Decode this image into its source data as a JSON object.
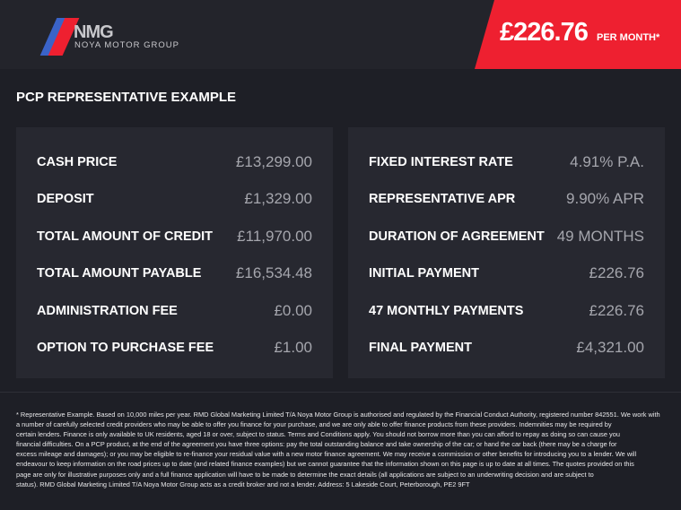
{
  "header": {
    "logo_text": "NMG",
    "logo_subtitle": "NOYA MOTOR GROUP",
    "price": "£226.76",
    "price_suffix": "PER MONTH*",
    "accent_color": "#ee2030"
  },
  "title": "PCP REPRESENTATIVE EXAMPLE",
  "left_panel": [
    {
      "label": "CASH PRICE",
      "value": "£13,299.00"
    },
    {
      "label": "DEPOSIT",
      "value": "£1,329.00"
    },
    {
      "label": "TOTAL AMOUNT OF CREDIT",
      "value": "£11,970.00"
    },
    {
      "label": "TOTAL AMOUNT PAYABLE",
      "value": "£16,534.48"
    },
    {
      "label": "ADMINISTRATION FEE",
      "value": "£0.00"
    },
    {
      "label": "OPTION TO PURCHASE FEE",
      "value": "£1.00"
    }
  ],
  "right_panel": [
    {
      "label": "FIXED INTEREST RATE",
      "value": "4.91% P.A."
    },
    {
      "label": "REPRESENTATIVE APR",
      "value": "9.90% APR"
    },
    {
      "label": "DURATION OF AGREEMENT",
      "value": "49 MONTHS"
    },
    {
      "label": "INITIAL PAYMENT",
      "value": "£226.76"
    },
    {
      "label": "47 MONTHLY PAYMENTS",
      "value": "£226.76"
    },
    {
      "label": "FINAL PAYMENT",
      "value": "£4,321.00"
    }
  ],
  "footnote": [
    "* Representative Example. Based on 10,000 miles per year. RMD Global Marketing Limited T/A Noya Motor Group is authorised and regulated by the Financial Conduct Authority, registered number 842551. We work with",
    "a number of carefully selected credit providers who may be able to offer you finance for your purchase, and we are only able to offer finance products from these providers. Indemnities may be required by",
    "certain lenders. Finance is only available to UK residents, aged 18 or over, subject to status. Terms and Conditions apply. You should not borrow more than you can afford to repay as doing so can cause you",
    "financial difficulties. On a PCP product, at the end of the agreement you have three options: pay the total outstanding balance and take ownership of the car; or hand the car back (there may be a charge for",
    "excess mileage and damages); or you may be eligible to re-finance your residual value with a new motor finance agreement. We may receive a commission or other benefits for introducing you to a lender. We will",
    "endeavour to keep information on the road prices up to date (and related finance examples) but we cannot guarantee that the information shown on this page is up to date at all times. The quotes provided on this",
    "page are only for illustrative purposes only and a full finance application will have to be made to determine the exact details (all applications are subject to an underwriting decision and are subject to",
    "status). RMD Global Marketing Limited T/A Noya Motor Group acts as a credit broker and not a lender. Address: 5 Lakeside Court, Peterborough, PE2 9FT"
  ]
}
